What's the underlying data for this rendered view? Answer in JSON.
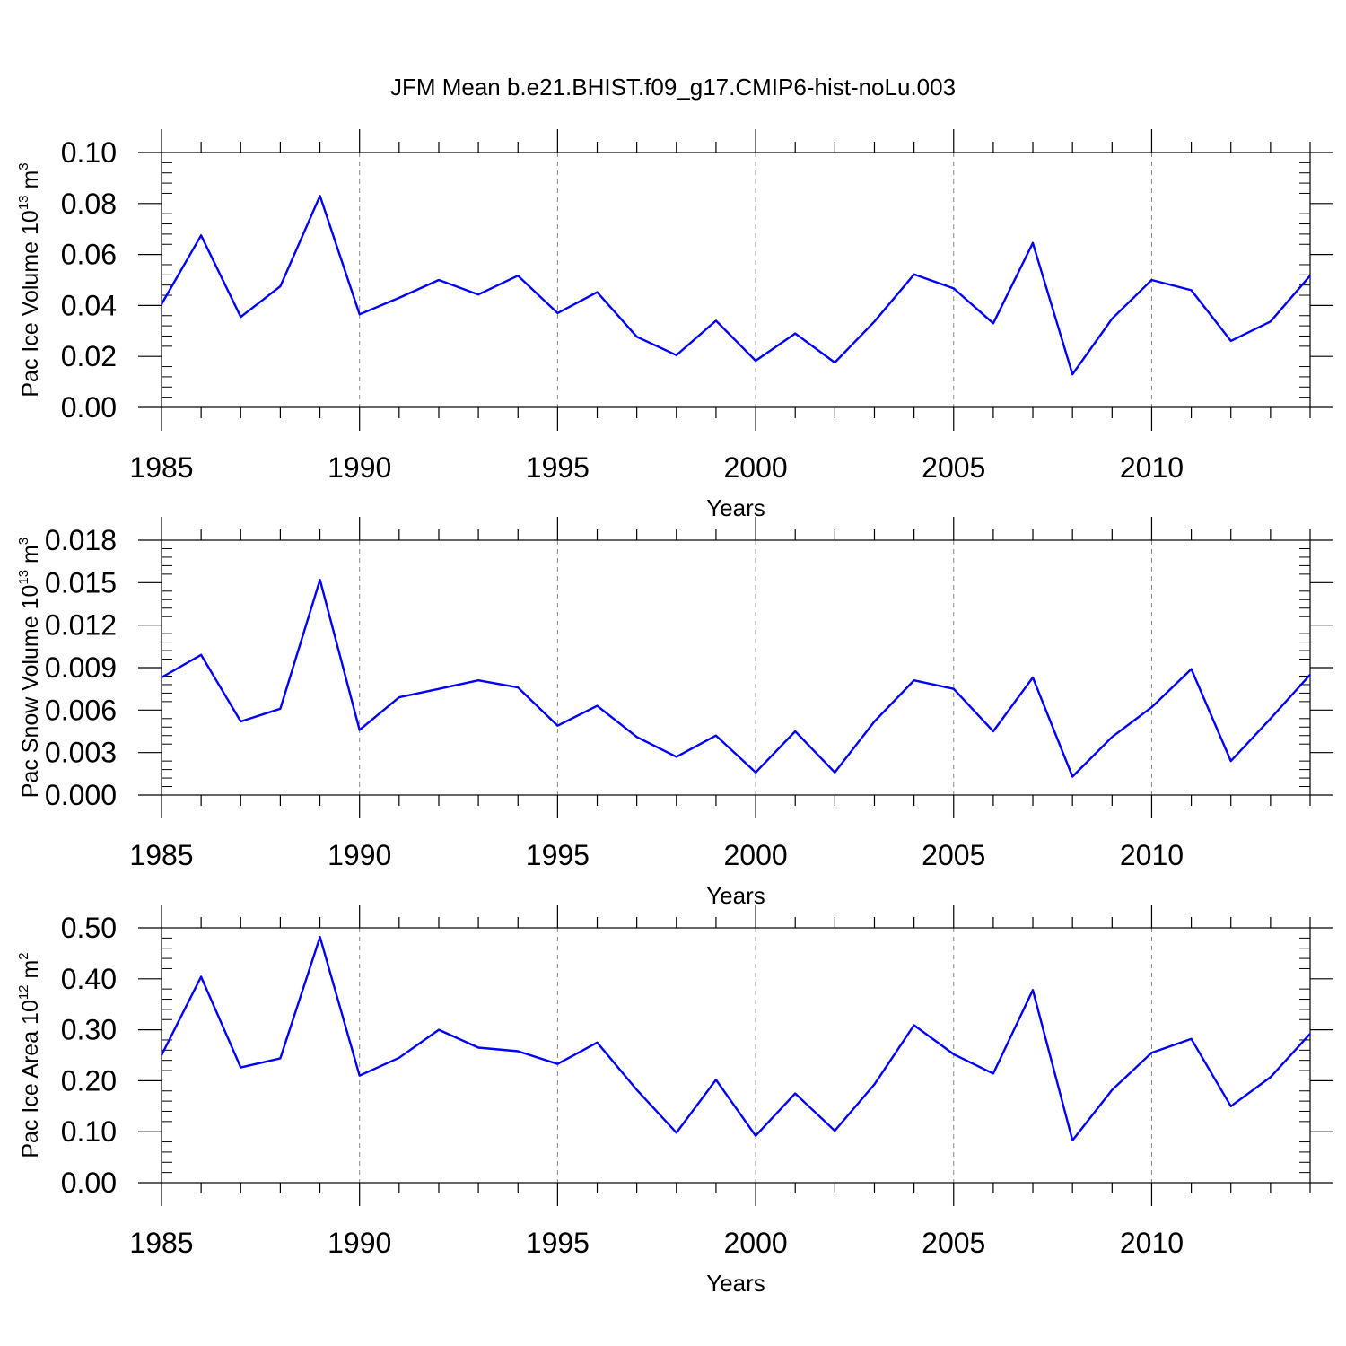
{
  "title": "JFM Mean b.e21.BHIST.f09_g17.CMIP6-hist-noLu.003",
  "line_color": "#0000ff",
  "chart_data": [
    {
      "type": "line",
      "ylabel": {
        "text": "Pac Ice Volume 10",
        "sup": "13",
        "unit": " m",
        "unit_sup": "3"
      },
      "xlabel": "Years",
      "xlim": [
        1985,
        2014
      ],
      "ylim": [
        0.0,
        0.1
      ],
      "y_ticks": [
        "0.00",
        "0.02",
        "0.04",
        "0.06",
        "0.08",
        "0.10"
      ],
      "y_tick_values": [
        0.0,
        0.02,
        0.04,
        0.06,
        0.08,
        0.1
      ],
      "x_ticks": [
        "1985",
        "1990",
        "1995",
        "2000",
        "2005",
        "2010"
      ],
      "x_tick_values": [
        1985,
        1990,
        1995,
        2000,
        2005,
        2010
      ],
      "x": [
        1985,
        1986,
        1987,
        1988,
        1989,
        1990,
        1991,
        1992,
        1993,
        1994,
        1995,
        1996,
        1997,
        1998,
        1999,
        2000,
        2001,
        2002,
        2003,
        2004,
        2005,
        2006,
        2007,
        2008,
        2009,
        2010,
        2011,
        2012,
        2013,
        2014
      ],
      "values": [
        0.0405,
        0.0675,
        0.0355,
        0.0475,
        0.083,
        0.0365,
        0.043,
        0.05,
        0.0443,
        0.0517,
        0.037,
        0.0452,
        0.0277,
        0.0205,
        0.034,
        0.0183,
        0.029,
        0.0176,
        0.0337,
        0.0522,
        0.0467,
        0.033,
        0.0645,
        0.013,
        0.0348,
        0.05,
        0.046,
        0.0261,
        0.0337,
        0.0517
      ]
    },
    {
      "type": "line",
      "ylabel": {
        "text": "Pac Snow Volume 10",
        "sup": "13",
        "unit": " m",
        "unit_sup": "3"
      },
      "xlabel": "Years",
      "xlim": [
        1985,
        2014
      ],
      "ylim": [
        0.0,
        0.018
      ],
      "y_ticks": [
        "0.000",
        "0.003",
        "0.006",
        "0.009",
        "0.012",
        "0.015",
        "0.018"
      ],
      "y_tick_values": [
        0.0,
        0.003,
        0.006,
        0.009,
        0.012,
        0.015,
        0.018
      ],
      "x_ticks": [
        "1985",
        "1990",
        "1995",
        "2000",
        "2005",
        "2010"
      ],
      "x_tick_values": [
        1985,
        1990,
        1995,
        2000,
        2005,
        2010
      ],
      "x": [
        1985,
        1986,
        1987,
        1988,
        1989,
        1990,
        1991,
        1992,
        1993,
        1994,
        1995,
        1996,
        1997,
        1998,
        1999,
        2000,
        2001,
        2002,
        2003,
        2004,
        2005,
        2006,
        2007,
        2008,
        2009,
        2010,
        2011,
        2012,
        2013,
        2014
      ],
      "values": [
        0.0083,
        0.0099,
        0.0052,
        0.0061,
        0.0152,
        0.0046,
        0.0069,
        0.0075,
        0.0081,
        0.0076,
        0.0049,
        0.0063,
        0.0041,
        0.0027,
        0.0042,
        0.0016,
        0.0045,
        0.0016,
        0.0052,
        0.0081,
        0.0075,
        0.0045,
        0.0083,
        0.0013,
        0.0041,
        0.0062,
        0.0089,
        0.0024,
        0.0054,
        0.0085
      ]
    },
    {
      "type": "line",
      "ylabel": {
        "text": "Pac Ice Area 10",
        "sup": "12",
        "unit": " m",
        "unit_sup": "2"
      },
      "xlabel": "Years",
      "xlim": [
        1985,
        2014
      ],
      "ylim": [
        0.0,
        0.5
      ],
      "y_ticks": [
        "0.00",
        "0.10",
        "0.20",
        "0.30",
        "0.40",
        "0.50"
      ],
      "y_tick_values": [
        0.0,
        0.1,
        0.2,
        0.3,
        0.4,
        0.5
      ],
      "x_ticks": [
        "1985",
        "1990",
        "1995",
        "2000",
        "2005",
        "2010"
      ],
      "x_tick_values": [
        1985,
        1990,
        1995,
        2000,
        2005,
        2010
      ],
      "x": [
        1985,
        1986,
        1987,
        1988,
        1989,
        1990,
        1991,
        1992,
        1993,
        1994,
        1995,
        1996,
        1997,
        1998,
        1999,
        2000,
        2001,
        2002,
        2003,
        2004,
        2005,
        2006,
        2007,
        2008,
        2009,
        2010,
        2011,
        2012,
        2013,
        2014
      ],
      "values": [
        0.25,
        0.404,
        0.226,
        0.244,
        0.482,
        0.21,
        0.245,
        0.3,
        0.265,
        0.258,
        0.233,
        0.275,
        0.182,
        0.098,
        0.202,
        0.092,
        0.175,
        0.102,
        0.193,
        0.309,
        0.252,
        0.214,
        0.378,
        0.083,
        0.182,
        0.255,
        0.282,
        0.15,
        0.207,
        0.292
      ]
    }
  ]
}
